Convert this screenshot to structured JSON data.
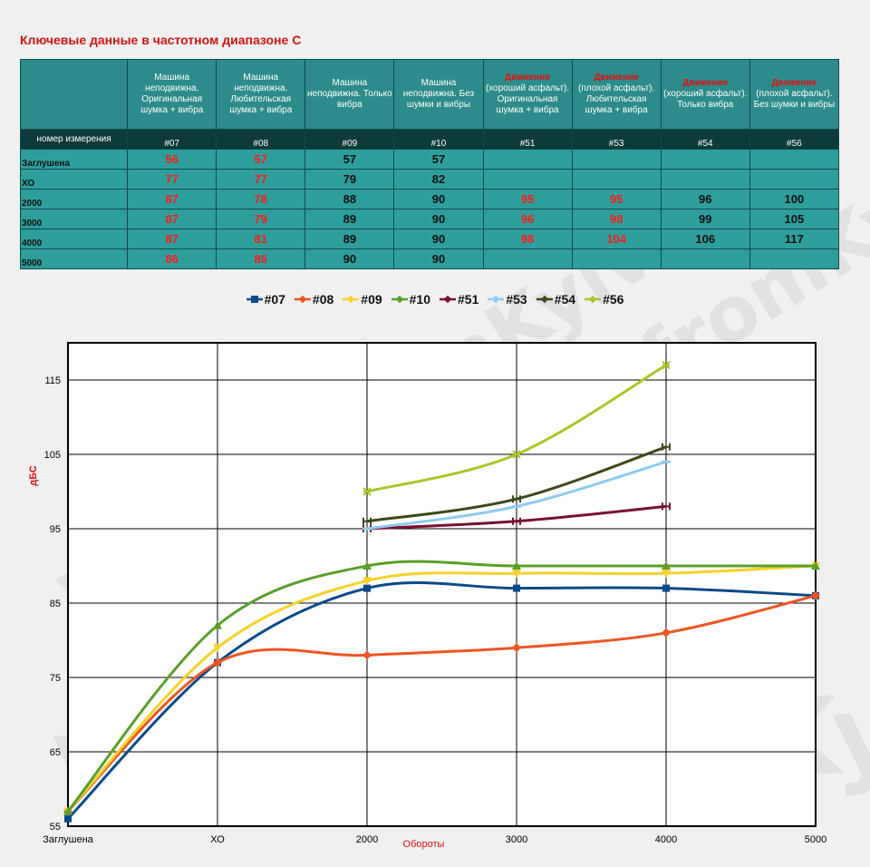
{
  "page": {
    "title": "Ключевые данные в частотном диапазоне С",
    "watermark": "VikTor-fromKyiv"
  },
  "table": {
    "corner_label": "номер измерения",
    "columns": [
      {
        "label_prefix": "",
        "label": "Машина неподвижна. Оригинальная шумка + вибра",
        "number": "#07"
      },
      {
        "label_prefix": "",
        "label": "Машина неподвижна. Любительская шумка + вибра",
        "number": "#08"
      },
      {
        "label_prefix": "",
        "label": "Машина неподвижна. Только вибра",
        "number": "#09"
      },
      {
        "label_prefix": "",
        "label": "Машина неподвижна. Без шумки и вибры",
        "number": "#10"
      },
      {
        "label_prefix": "Движение",
        "label": "(хороший асфальт). Оригинальная шумка + вибра",
        "number": "#51"
      },
      {
        "label_prefix": "Движение",
        "label": "(плохой асфальт). Любительская шумка + вибра",
        "number": "#53"
      },
      {
        "label_prefix": "Движение",
        "label": "(хороший асфальт). Только вибра",
        "number": "#54"
      },
      {
        "label_prefix": "Движение",
        "label": "(плохой асфальт). Без шумки и вибры",
        "number": "#56"
      }
    ],
    "rows": [
      {
        "label": "Заглушена",
        "values": [
          "56",
          "57",
          "57",
          "57",
          "",
          "",
          "",
          ""
        ]
      },
      {
        "label": "ХО",
        "values": [
          "77",
          "77",
          "79",
          "82",
          "",
          "",
          "",
          ""
        ]
      },
      {
        "label": "2000",
        "values": [
          "87",
          "78",
          "88",
          "90",
          "95",
          "95",
          "96",
          "100"
        ]
      },
      {
        "label": "3000",
        "values": [
          "87",
          "79",
          "89",
          "90",
          "96",
          "98",
          "99",
          "105"
        ]
      },
      {
        "label": "4000",
        "values": [
          "87",
          "81",
          "89",
          "90",
          "98",
          "104",
          "106",
          "117"
        ]
      },
      {
        "label": "5000",
        "values": [
          "86",
          "86",
          "90",
          "90",
          "",
          "",
          "",
          ""
        ]
      }
    ],
    "value_colors": [
      "red",
      "red",
      "black",
      "black",
      "red",
      "red",
      "black",
      "black"
    ]
  },
  "colors": {
    "title": "#d21414",
    "table_header_bg": "#2e8b8b",
    "table_number_bg": "#0d3a3a",
    "table_body_bg": "#2e9e9c",
    "value_red": "#ff1a1a",
    "axis_label": "#e01010"
  },
  "chart_data": {
    "type": "line",
    "categories": [
      "Заглушена",
      "ХО",
      "2000",
      "3000",
      "4000",
      "5000"
    ],
    "xlabel": "Обороты",
    "ylabel": "дБС",
    "ylim": [
      55,
      120
    ],
    "yticks": [
      55,
      65,
      75,
      85,
      95,
      105,
      115
    ],
    "grid": true,
    "legend_position": "top",
    "series": [
      {
        "name": "#07",
        "color": "#0b4a8a",
        "marker": "square",
        "values": [
          56,
          77,
          87,
          87,
          87,
          86
        ]
      },
      {
        "name": "#08",
        "color": "#ee5522",
        "marker": "diamond",
        "values": [
          57,
          77,
          78,
          79,
          81,
          86
        ]
      },
      {
        "name": "#09",
        "color": "#f6d22a",
        "marker": "triangle-down",
        "values": [
          57,
          79,
          88,
          89,
          89,
          90
        ]
      },
      {
        "name": "#10",
        "color": "#5a9e2a",
        "marker": "triangle",
        "values": [
          57,
          82,
          90,
          90,
          90,
          90
        ]
      },
      {
        "name": "#51",
        "color": "#7a0f2e",
        "marker": "bar-end",
        "values": [
          null,
          null,
          95,
          96,
          98,
          null
        ]
      },
      {
        "name": "#53",
        "color": "#8ecbf0",
        "marker": "dash",
        "values": [
          null,
          null,
          95,
          98,
          104,
          null
        ]
      },
      {
        "name": "#54",
        "color": "#3b4a1a",
        "marker": "bar-end",
        "values": [
          null,
          null,
          96,
          99,
          106,
          null
        ]
      },
      {
        "name": "#56",
        "color": "#a8c828",
        "marker": "x",
        "values": [
          null,
          null,
          100,
          105,
          117,
          null
        ]
      }
    ]
  }
}
